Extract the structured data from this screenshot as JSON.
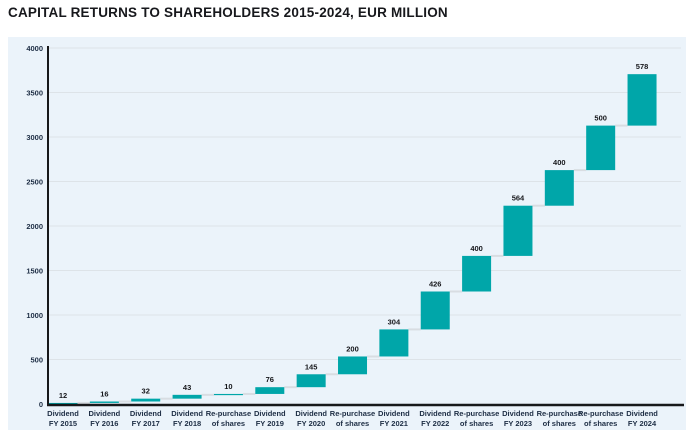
{
  "page": {
    "title": "CAPITAL RETURNS TO SHAREHOLDERS 2015-2024, EUR MILLION"
  },
  "chart_data": {
    "type": "bar",
    "subtype": "waterfall",
    "title": "CAPITAL RETURNS TO SHAREHOLDERS 2015-2024, EUR MILLION",
    "xlabel": "",
    "ylabel": "",
    "unit": "EUR million",
    "categories": [
      "Dividend FY 2015",
      "Dividend FY 2016",
      "Dividend FY 2017",
      "Dividend FY 2018",
      "Re-purchase of shares",
      "Dividend FY 2019",
      "Dividend FY 2020",
      "Re-purchase of shares",
      "Dividend FY 2021",
      "Dividend FY 2022",
      "Re-purchase of shares",
      "Dividend FY 2023",
      "Re-purchase of shares",
      "Re-purchase of shares",
      "Dividend FY 2024"
    ],
    "category_label_lines": [
      [
        "Dividend",
        "FY 2015"
      ],
      [
        "Dividend",
        "FY 2016"
      ],
      [
        "Dividend",
        "FY 2017"
      ],
      [
        "Dividend",
        "FY 2018"
      ],
      [
        "Re-purchase",
        "of shares"
      ],
      [
        "Dividend",
        "FY 2019"
      ],
      [
        "Dividend",
        "FY 2020"
      ],
      [
        "Re-purchase",
        "of shares"
      ],
      [
        "Dividend",
        "FY 2021"
      ],
      [
        "Dividend",
        "FY 2022"
      ],
      [
        "Re-purchase",
        "of shares"
      ],
      [
        "Dividend",
        "FY 2023"
      ],
      [
        "Re-purchase",
        "of shares"
      ],
      [
        "Re-purchase",
        "of shares"
      ],
      [
        "Dividend",
        "FY 2024"
      ]
    ],
    "values": [
      12,
      16,
      32,
      43,
      10,
      76,
      145,
      200,
      304,
      426,
      400,
      564,
      400,
      500,
      578
    ],
    "cumulative_totals": [
      12,
      28,
      60,
      103,
      113,
      189,
      334,
      534,
      838,
      1264,
      1664,
      2228,
      2628,
      3128,
      3706
    ],
    "ylim": [
      0,
      4000
    ],
    "y_ticks": [
      0,
      500,
      1000,
      1500,
      2000,
      2500,
      3000,
      3500,
      4000
    ],
    "grid": true,
    "legend": "none",
    "colors": {
      "bar": "#00a6a9",
      "connector": "#d8dde2",
      "grid": "#dde3e8",
      "axis": "#17181a",
      "tick_label": "#1d2d44",
      "value_label": "#15161a",
      "panel_background": "#ebf3fa",
      "page_background": "#ffffff",
      "title": "#17181c"
    }
  }
}
